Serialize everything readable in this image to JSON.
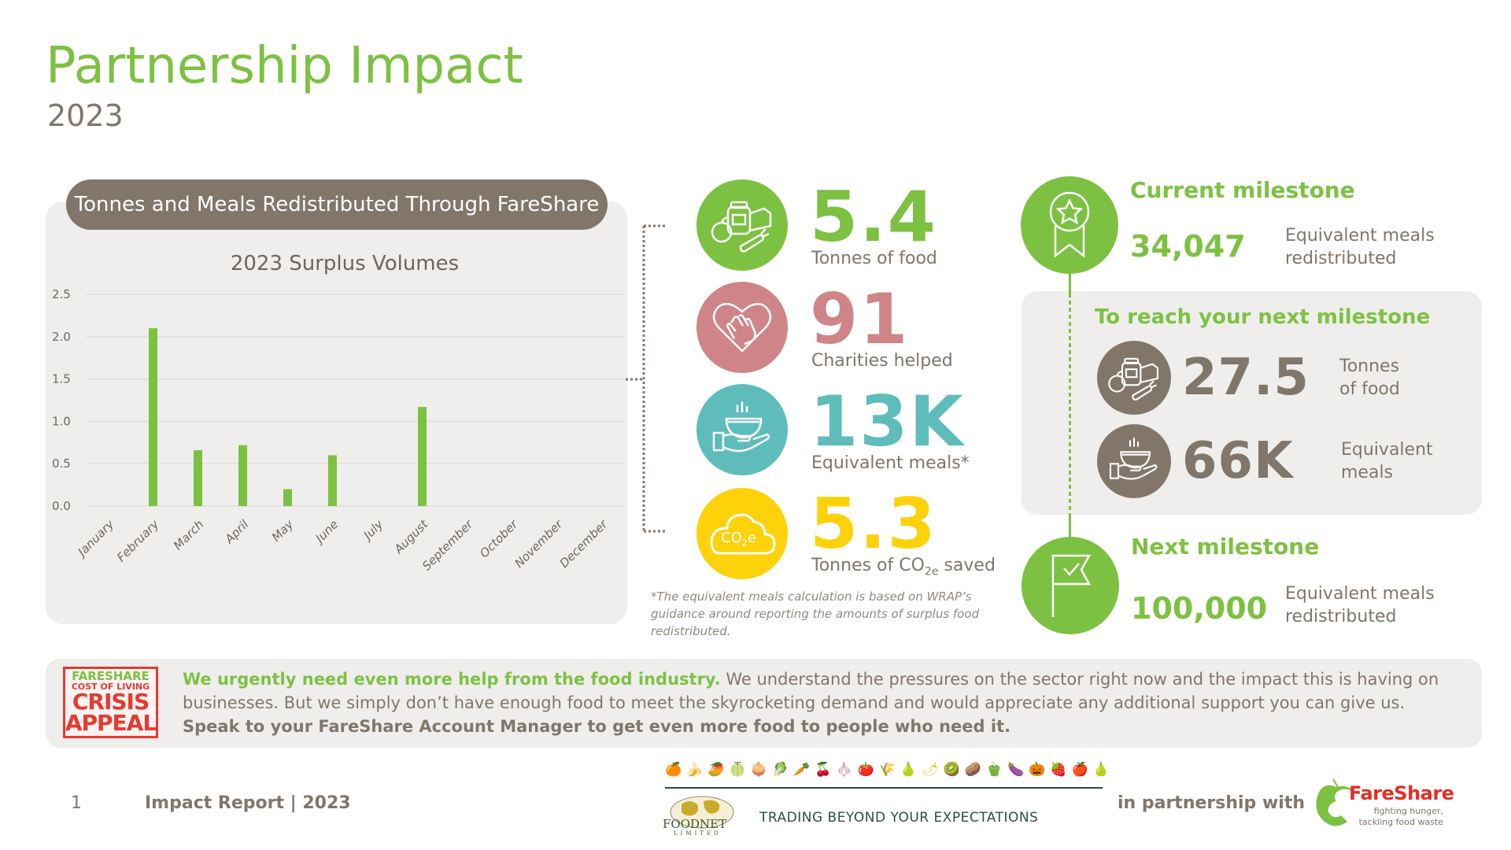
{
  "header": {
    "title": "Partnership Impact",
    "year": "2023"
  },
  "chart_panel": {
    "heading": "Tonnes and Meals Redistributed Through FareShare"
  },
  "chart_data": {
    "type": "bar",
    "title": "2023 Surplus Volumes",
    "xlabel": "",
    "ylabel": "",
    "categories": [
      "January",
      "February",
      "March",
      "April",
      "May",
      "June",
      "July",
      "August",
      "September",
      "October",
      "November",
      "December"
    ],
    "values": [
      0,
      2.1,
      0.66,
      0.72,
      0.2,
      0.6,
      0,
      1.17,
      0,
      0,
      0,
      0
    ],
    "ylim": [
      0,
      2.5
    ],
    "yticks": [
      "0.0",
      "0.5",
      "1.0",
      "1.5",
      "2.0",
      "2.5"
    ],
    "grid": true,
    "legend": "none",
    "bar_color": "#7dc142"
  },
  "stats": [
    {
      "value": "5.4",
      "label": "Tonnes of food",
      "icon": "food-basket-icon",
      "color": "#7dc142"
    },
    {
      "value": "91",
      "label": "Charities helped",
      "icon": "heart-hand-icon",
      "color": "#cf8587"
    },
    {
      "value": "13K",
      "label": "Equivalent meals*",
      "icon": "meal-hand-icon",
      "color": "#5ebdbb"
    },
    {
      "value": "5.3",
      "label_pre": "Tonnes of CO",
      "label_sub": "2e",
      "label_post": " saved",
      "icon": "co2e-cloud-icon",
      "icon_text": "CO",
      "icon_sub": "2",
      "icon_post": "e",
      "color": "#fdd20a"
    }
  ],
  "footnote": "*The equivalent meals calculation is based on WRAP’s guidance around reporting the amounts of surplus food redistributed.",
  "milestones": {
    "current": {
      "title": "Current milestone",
      "value": "34,047",
      "label_line1": "Equivalent meals",
      "label_line2": "redistributed",
      "icon": "award-star-icon"
    },
    "to_reach": {
      "title": "To reach your next milestone",
      "items": [
        {
          "value": "27.5",
          "label_line1": "Tonnes",
          "label_line2": "of food",
          "icon": "food-basket-icon"
        },
        {
          "value": "66K",
          "label_line1": "Equivalent",
          "label_line2": "meals",
          "icon": "meal-hand-icon"
        }
      ]
    },
    "next": {
      "title": "Next milestone",
      "value": "100,000",
      "label_line1": "Equivalent meals",
      "label_line2": "redistributed",
      "icon": "flag-check-icon"
    }
  },
  "appeal": {
    "stamp": {
      "line1": "FARESHARE",
      "line2": "COST OF LIVING",
      "line3": "CRISIS",
      "line4": "APPEAL"
    },
    "headline": "We urgently need even more help from the food industry.",
    "body": " We understand the pressures on the sector right now and the impact this is having on businesses. But we simply don’t have enough food to meet the skyrocketing demand and would appreciate any additional support you can give us.",
    "cta": "Speak to your FareShare Account Manager to get even more food to people who need it."
  },
  "footer": {
    "page_number": "1",
    "report_label": "Impact Report | 2023",
    "partner_tagline": "TRADING BEYOND YOUR EXPECTATIONS",
    "partner_logo_text": "FOODNET",
    "partner_logo_sub": "LIMITED",
    "partnership_text": "in partnership with",
    "fareshare_logo_text": "FareShare",
    "fareshare_tagline_1": "fighting hunger,",
    "fareshare_tagline_2": "tackling food waste"
  },
  "colors": {
    "accent_green": "#7dc142",
    "brown": "#80766b",
    "panel_grey": "#efeeec",
    "red": "#e53a32"
  }
}
